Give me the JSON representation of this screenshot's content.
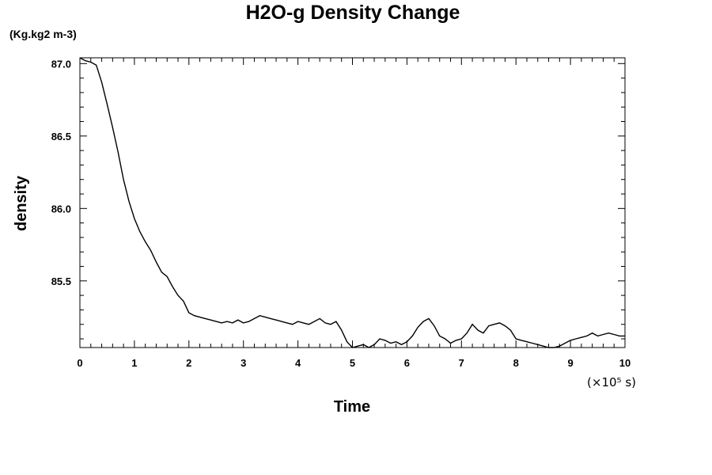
{
  "chart_data": {
    "type": "line",
    "title": "H2O-g Density Change",
    "y_unit": "(Kg.kg2 m-3)",
    "xlabel": "Time",
    "ylabel": "density",
    "x_scale_note": "(×10⁵ s)",
    "xlim": [
      0,
      10
    ],
    "ylim": [
      85.04,
      87.04
    ],
    "x_ticks": [
      0,
      1,
      2,
      3,
      4,
      5,
      6,
      7,
      8,
      9,
      10
    ],
    "x_tick_labels": [
      "0",
      "1",
      "2",
      "3",
      "4",
      "5",
      "6",
      "7",
      "8",
      "9",
      "10"
    ],
    "y_ticks": [
      85.5,
      86.0,
      86.5,
      87.0
    ],
    "y_tick_labels": [
      "85.5",
      "86.0",
      "86.5",
      "87.0"
    ],
    "grid": false,
    "series": [
      {
        "x": [
          0,
          0.1,
          0.2,
          0.3,
          0.4,
          0.5,
          0.6,
          0.7,
          0.8,
          0.9,
          1.0,
          1.1,
          1.2,
          1.3,
          1.4,
          1.5,
          1.6,
          1.7,
          1.8,
          1.9,
          2.0,
          2.1,
          2.2,
          2.3,
          2.4,
          2.5,
          2.6,
          2.7,
          2.8,
          2.9,
          3.0,
          3.1,
          3.2,
          3.3,
          3.4,
          3.5,
          3.6,
          3.7,
          3.8,
          3.9,
          4.0,
          4.1,
          4.2,
          4.3,
          4.4,
          4.5,
          4.6,
          4.7,
          4.8,
          4.9,
          5.0,
          5.1,
          5.2,
          5.3,
          5.4,
          5.5,
          5.6,
          5.7,
          5.8,
          5.9,
          6.0,
          6.1,
          6.2,
          6.3,
          6.4,
          6.5,
          6.6,
          6.7,
          6.8,
          6.9,
          7.0,
          7.1,
          7.2,
          7.3,
          7.4,
          7.5,
          7.6,
          7.7,
          7.8,
          7.9,
          8.0,
          8.1,
          8.2,
          8.3,
          8.4,
          8.5,
          8.6,
          8.7,
          8.8,
          8.9,
          9.0,
          9.1,
          9.2,
          9.3,
          9.4,
          9.5,
          9.6,
          9.7,
          9.8,
          9.9,
          10.0
        ],
        "values": [
          87.04,
          87.02,
          87.01,
          86.99,
          86.87,
          86.72,
          86.56,
          86.39,
          86.2,
          86.05,
          85.93,
          85.84,
          85.77,
          85.71,
          85.63,
          85.56,
          85.53,
          85.46,
          85.4,
          85.36,
          85.28,
          85.26,
          85.25,
          85.24,
          85.23,
          85.22,
          85.21,
          85.22,
          85.21,
          85.23,
          85.21,
          85.22,
          85.24,
          85.26,
          85.25,
          85.24,
          85.23,
          85.22,
          85.21,
          85.2,
          85.22,
          85.21,
          85.2,
          85.22,
          85.24,
          85.21,
          85.2,
          85.22,
          85.16,
          85.08,
          85.04,
          85.05,
          85.06,
          85.04,
          85.06,
          85.1,
          85.09,
          85.07,
          85.08,
          85.06,
          85.08,
          85.12,
          85.18,
          85.22,
          85.24,
          85.19,
          85.12,
          85.1,
          85.07,
          85.09,
          85.1,
          85.14,
          85.2,
          85.16,
          85.14,
          85.19,
          85.2,
          85.21,
          85.19,
          85.16,
          85.1,
          85.09,
          85.08,
          85.07,
          85.06,
          85.05,
          85.04,
          85.04,
          85.05,
          85.07,
          85.09,
          85.1,
          85.11,
          85.12,
          85.14,
          85.12,
          85.13,
          85.14,
          85.13,
          85.12,
          85.12
        ]
      }
    ]
  }
}
